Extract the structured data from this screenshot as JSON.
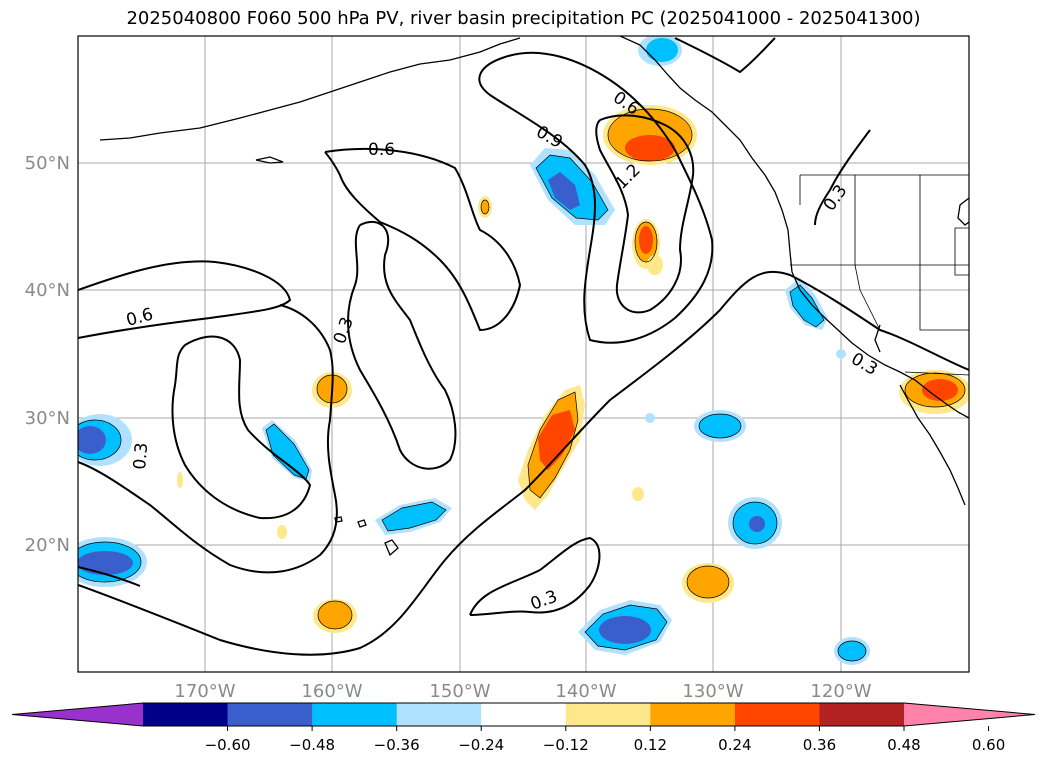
{
  "title": "2025040800 F060 500 hPa PV, river basin precipitation PC (2025041000 - 2025041300)",
  "map": {
    "lat_labels": [
      "50°N",
      "40°N",
      "30°N",
      "20°N"
    ],
    "lon_labels": [
      "170°W",
      "160°W",
      "150°W",
      "140°W",
      "130°W",
      "120°W"
    ],
    "contour_labels": [
      "0.6",
      "0.9",
      "1.2",
      "0.6",
      "0.6",
      "0.3",
      "0.3",
      "0.3",
      "0.3",
      "0.3"
    ]
  },
  "colorbar": {
    "tick_labels": [
      "−0.60",
      "−0.48",
      "−0.36",
      "−0.24",
      "−0.12",
      "0.12",
      "0.24",
      "0.36",
      "0.48",
      "0.60"
    ],
    "colors": [
      "#9932cc",
      "#00008b",
      "#3a5fcd",
      "#00bfff",
      "#b0e2ff",
      "#ffffff",
      "#ffe88a",
      "#ffa500",
      "#ff4500",
      "#b22222",
      "#ff82ab"
    ]
  }
}
